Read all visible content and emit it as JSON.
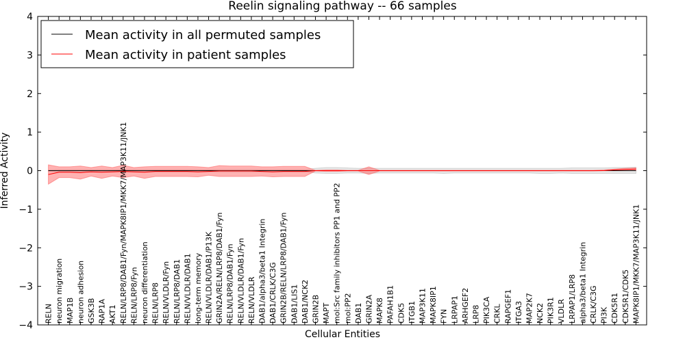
{
  "chart_data": {
    "type": "line",
    "title": "Reelin signaling pathway -- 66 samples",
    "xlabel": "Cellular Entities",
    "ylabel": "Inferred Activity",
    "ylim": [
      -4,
      4
    ],
    "yticks": [
      -4,
      -3,
      -2,
      -1,
      0,
      1,
      2,
      3,
      4
    ],
    "ytick_labels": [
      "−4",
      "−3",
      "−2",
      "−1",
      "0",
      "1",
      "2",
      "3",
      "4"
    ],
    "legend_position": "top-left",
    "categories": [
      "RELN",
      "neuron migration",
      "MAP1B",
      "neuron adhesion",
      "GSK3B",
      "RAP1A",
      "AKT1",
      "RELN/LRP8/DAB1/Fyn/MAPK8IP1/MKK7/MAP3K11/JNK1",
      "RELN/LRP8/Fyn",
      "neuron differentiation",
      "RELN/LRP8",
      "RELN/VLDLR/Fyn",
      "RELN/LRP8/DAB1",
      "RELN/VLDLR/DAB1",
      "long-term memory",
      "RELN/VLDLR/DAB1/P13K",
      "GRIN2A/RELN/LRP8/DAB1/Fyn",
      "RELN/LRP8/DAB1/Fyn",
      "RELN/VLDLR/DAB1/Fyn",
      "RELN/VLDLR",
      "DAB1/alpha3/beta1 Integrin",
      "DAB1/CRLK/C3G",
      "GRIN2B/RELN/LRP8/DAB1/Fyn",
      "DAB1/LIS1",
      "DAB1/NCK2",
      "GRIN2B",
      "MAPT",
      "mol:Src family inhibitors PP1 and PP2",
      "mol:PP2",
      "DAB1",
      "GRIN2A",
      "MAPK8",
      "PAFAH1B1",
      "CDK5",
      "ITGB1",
      "MAP3K11",
      "MAPK8IP1",
      "FYN",
      "LRPAP1",
      "ARHGEF2",
      "LRP8",
      "PIK3CA",
      "CRKL",
      "RAPGEF1",
      "ITGA3",
      "MAP2K7",
      "NCK2",
      "PIK3R1",
      "VLDLR",
      "LRPAP1/LRP8",
      "alpha3/beta1 Integrin",
      "CRLK/C3G",
      "PI3K",
      "CDK5R1",
      "CDK5R1/CDK5",
      "MAPK8IP1/MKK7/MAP3K11/JNK1"
    ],
    "series": [
      {
        "name": "Mean activity in all permuted samples",
        "color": "#000000",
        "values": [
          0,
          0,
          0,
          0,
          0,
          0,
          0,
          0,
          0,
          0,
          0,
          0,
          0,
          0,
          0,
          0,
          0,
          0,
          0,
          0,
          0,
          0,
          0,
          0,
          0,
          0,
          0,
          0,
          0,
          0,
          0,
          0,
          0,
          0,
          0,
          0,
          0,
          0,
          0,
          0,
          0,
          0,
          0,
          0,
          0,
          0,
          0,
          0,
          0,
          0,
          0,
          0,
          0,
          0,
          0,
          0
        ],
        "band_upper": [
          0.02,
          0.03,
          0.03,
          0.03,
          0.03,
          0.03,
          0.03,
          0.03,
          0.03,
          0.03,
          0.03,
          0.03,
          0.03,
          0.03,
          0.03,
          0.03,
          0.03,
          0.03,
          0.03,
          0.03,
          0.03,
          0.03,
          0.03,
          0.03,
          0.03,
          0.06,
          0.08,
          0.08,
          0.07,
          0.06,
          0.06,
          0.06,
          0.06,
          0.06,
          0.06,
          0.06,
          0.06,
          0.06,
          0.06,
          0.06,
          0.06,
          0.06,
          0.06,
          0.06,
          0.06,
          0.06,
          0.06,
          0.06,
          0.06,
          0.07,
          0.07,
          0.07,
          0.07,
          0.08,
          0.08,
          0.09
        ],
        "band_lower": [
          -0.02,
          -0.03,
          -0.03,
          -0.03,
          -0.03,
          -0.03,
          -0.03,
          -0.03,
          -0.03,
          -0.03,
          -0.03,
          -0.03,
          -0.03,
          -0.03,
          -0.03,
          -0.03,
          -0.03,
          -0.03,
          -0.03,
          -0.03,
          -0.03,
          -0.03,
          -0.03,
          -0.03,
          -0.03,
          -0.06,
          -0.07,
          -0.07,
          -0.06,
          -0.06,
          -0.07,
          -0.06,
          -0.06,
          -0.06,
          -0.06,
          -0.06,
          -0.06,
          -0.07,
          -0.06,
          -0.06,
          -0.06,
          -0.06,
          -0.06,
          -0.06,
          -0.06,
          -0.06,
          -0.07,
          -0.07,
          -0.06,
          -0.07,
          -0.07,
          -0.07,
          -0.07,
          -0.07,
          -0.07,
          -0.07
        ],
        "band_color": "#bbbbbb"
      },
      {
        "name": "Mean activity in patient samples",
        "color": "#ff0000",
        "values": [
          -0.1,
          -0.04,
          -0.04,
          -0.05,
          -0.03,
          -0.04,
          -0.03,
          -0.02,
          -0.03,
          -0.04,
          -0.02,
          -0.02,
          -0.02,
          -0.02,
          -0.03,
          -0.02,
          -0.01,
          -0.01,
          -0.01,
          -0.01,
          -0.02,
          -0.03,
          -0.02,
          -0.02,
          -0.02,
          0,
          0,
          0,
          0,
          0,
          0,
          0,
          0,
          0,
          0,
          0,
          0,
          0,
          0,
          0,
          0,
          0,
          0,
          0,
          0,
          0,
          0,
          0,
          0,
          0,
          0,
          0,
          0,
          0.02,
          0.03,
          0.04
        ],
        "band_upper": [
          0.15,
          0.1,
          0.1,
          0.12,
          0.08,
          0.12,
          0.08,
          0.14,
          0.08,
          0.1,
          0.11,
          0.11,
          0.11,
          0.11,
          0.1,
          0.08,
          0.13,
          0.12,
          0.12,
          0.12,
          0.1,
          0.1,
          0.11,
          0.11,
          0.11,
          0.01,
          0.02,
          0.02,
          0.01,
          0.01,
          0.1,
          0.01,
          0.01,
          0.01,
          0.01,
          0.01,
          0.01,
          0.01,
          0.01,
          0.01,
          0.01,
          0.01,
          0.01,
          0.01,
          0.01,
          0.01,
          0.01,
          0.01,
          0.01,
          0.01,
          0.01,
          0.01,
          0.02,
          0.04,
          0.06,
          0.07
        ],
        "band_lower": [
          -0.35,
          -0.18,
          -0.18,
          -0.22,
          -0.14,
          -0.2,
          -0.14,
          -0.18,
          -0.14,
          -0.2,
          -0.15,
          -0.15,
          -0.15,
          -0.15,
          -0.16,
          -0.12,
          -0.15,
          -0.15,
          -0.15,
          -0.15,
          -0.14,
          -0.16,
          -0.15,
          -0.15,
          -0.15,
          -0.01,
          -0.02,
          -0.02,
          -0.01,
          -0.01,
          -0.1,
          -0.01,
          -0.01,
          -0.01,
          -0.01,
          -0.01,
          -0.01,
          -0.01,
          -0.01,
          -0.01,
          -0.01,
          -0.01,
          -0.01,
          -0.01,
          -0.01,
          -0.01,
          -0.01,
          -0.01,
          -0.01,
          -0.01,
          -0.01,
          -0.01,
          0,
          0,
          0,
          0
        ],
        "band_color": "#ff6666"
      }
    ]
  }
}
